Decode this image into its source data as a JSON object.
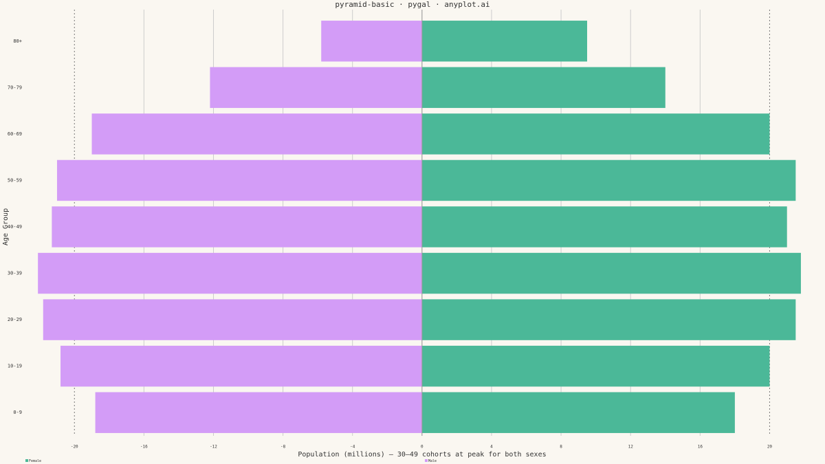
{
  "chart_data": {
    "type": "bar",
    "orientation": "horizontal",
    "title": "pyramid-basic · pygal · anyplot.ai",
    "x_label": "Population (millions) — 30–49 cohorts at peak for both sexes",
    "y_label": "Age Group",
    "categories": [
      "0-9",
      "10-19",
      "20-29",
      "30-39",
      "40-49",
      "50-59",
      "60-69",
      "70-79",
      "80+"
    ],
    "series": [
      {
        "name": "Female",
        "color": "#4bb898",
        "values": [
          18.0,
          20.0,
          21.5,
          21.8,
          21.0,
          21.5,
          20.0,
          14.0,
          9.5
        ]
      },
      {
        "name": "Male",
        "color": "#d39cf7",
        "values": [
          -18.8,
          -20.8,
          -21.8,
          -22.1,
          -21.3,
          -21.0,
          -19.0,
          -12.2,
          -5.8
        ]
      }
    ],
    "xlim": [
      -22.7,
      22.0
    ],
    "xticks": [
      -20,
      -16,
      -12,
      -8,
      -4,
      0,
      4,
      8,
      12,
      16,
      20
    ],
    "grid": true
  }
}
